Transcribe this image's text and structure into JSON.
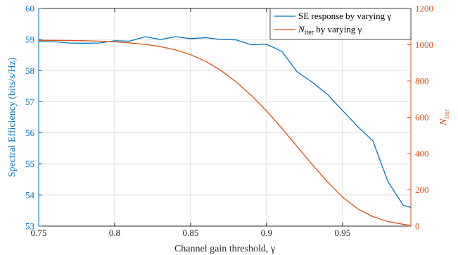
{
  "chart_data": {
    "type": "line",
    "xlabel": "Channel gain threshold, γ",
    "ylabel_left": "Spectral Efficiency (bits/s/Hz)",
    "ylabel_right_main": "N",
    "ylabel_right_sub": "iter",
    "xlim": [
      0.75,
      0.995
    ],
    "ylim_left": [
      53,
      60
    ],
    "ylim_right": [
      0,
      1200
    ],
    "xticks": [
      "0.75",
      "0.8",
      "0.85",
      "0.9",
      "0.95"
    ],
    "yticks_left": [
      "53",
      "54",
      "55",
      "56",
      "57",
      "58",
      "59",
      "60"
    ],
    "yticks_right": [
      "0",
      "200",
      "400",
      "600",
      "800",
      "1000",
      "1200"
    ],
    "grid": true,
    "legend_position": "top-right",
    "colors": {
      "se": "#0072BD",
      "niter": "#D95319",
      "axis": "#262626",
      "grid": "#DFDFDF"
    },
    "series": [
      {
        "name": "SE response by varying γ",
        "axis": "left",
        "x": [
          0.75,
          0.76,
          0.77,
          0.78,
          0.79,
          0.8,
          0.81,
          0.82,
          0.83,
          0.84,
          0.85,
          0.86,
          0.87,
          0.88,
          0.89,
          0.9,
          0.91,
          0.92,
          0.93,
          0.94,
          0.95,
          0.96,
          0.97,
          0.98,
          0.99,
          0.995
        ],
        "y": [
          58.93,
          58.93,
          58.89,
          58.88,
          58.89,
          58.96,
          58.95,
          59.09,
          59.0,
          59.09,
          59.03,
          59.06,
          59.0,
          58.99,
          58.83,
          58.85,
          58.62,
          57.97,
          57.63,
          57.24,
          56.72,
          56.2,
          55.74,
          54.42,
          53.67,
          53.6
        ]
      },
      {
        "name_main": "N",
        "name_sub": "iter",
        "name_rest": " by varying γ",
        "axis": "right",
        "x": [
          0.75,
          0.76,
          0.77,
          0.78,
          0.79,
          0.8,
          0.81,
          0.82,
          0.83,
          0.84,
          0.85,
          0.86,
          0.87,
          0.88,
          0.89,
          0.9,
          0.91,
          0.92,
          0.93,
          0.94,
          0.95,
          0.96,
          0.97,
          0.98,
          0.99,
          0.995
        ],
        "y": [
          1024,
          1024,
          1023,
          1022,
          1020,
          1016,
          1010,
          1002,
          990,
          972,
          945,
          908,
          858,
          795,
          720,
          635,
          540,
          440,
          340,
          245,
          160,
          95,
          52,
          25,
          10,
          4
        ]
      }
    ]
  }
}
